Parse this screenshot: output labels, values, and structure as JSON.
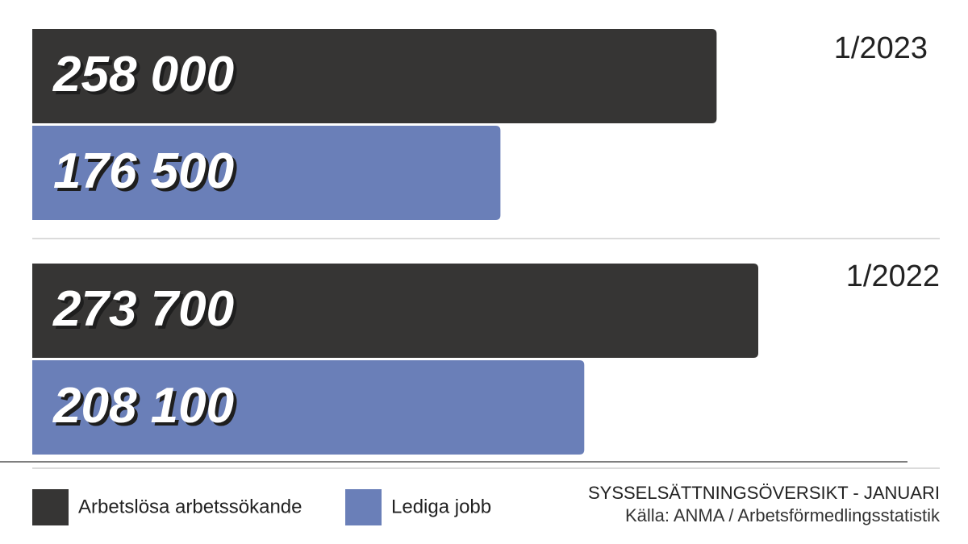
{
  "chart_data": {
    "type": "bar",
    "orientation": "horizontal",
    "title": "SYSSELSÄTTNINGSÖVERSIKT - JANUARI",
    "source": "Källa: ANMA / Arbetsförmedlingsstatistik",
    "categories": [
      "1/2023",
      "1/2022"
    ],
    "series": [
      {
        "name": "Arbetslösa arbetssökande",
        "color": "#363534",
        "values": [
          258000,
          273700
        ],
        "value_labels": [
          "258 000",
          "273 700"
        ]
      },
      {
        "name": "Lediga jobb",
        "color": "#6a7fb8",
        "values": [
          176500,
          208100
        ],
        "value_labels": [
          "176 500",
          "208 100"
        ]
      }
    ]
  }
}
